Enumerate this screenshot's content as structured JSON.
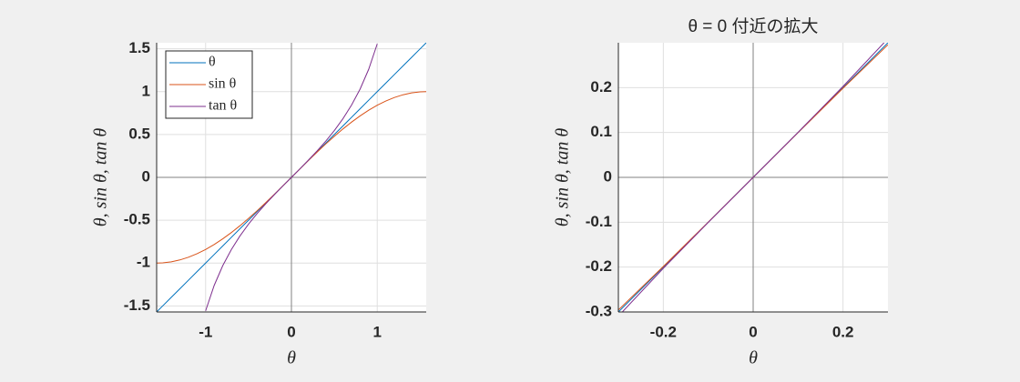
{
  "chart_data": [
    {
      "type": "line",
      "xlabel": "θ",
      "ylabel": "θ, sin θ, tan θ",
      "x": [
        -1.5708,
        -1.5,
        -1.4,
        -1.3,
        -1.2,
        -1.1,
        -1.0,
        -0.9,
        -0.8,
        -0.7,
        -0.6,
        -0.5,
        -0.4,
        -0.3,
        -0.2,
        -0.1,
        0,
        0.1,
        0.2,
        0.3,
        0.4,
        0.5,
        0.6,
        0.7,
        0.8,
        0.9,
        1.0,
        1.1,
        1.2,
        1.3,
        1.4,
        1.5,
        1.5708
      ],
      "series": [
        {
          "name": "θ",
          "color": "#0072bd",
          "values": [
            -1.5708,
            -1.5,
            -1.4,
            -1.3,
            -1.2,
            -1.1,
            -1.0,
            -0.9,
            -0.8,
            -0.7,
            -0.6,
            -0.5,
            -0.4,
            -0.3,
            -0.2,
            -0.1,
            0,
            0.1,
            0.2,
            0.3,
            0.4,
            0.5,
            0.6,
            0.7,
            0.8,
            0.9,
            1.0,
            1.1,
            1.2,
            1.3,
            1.4,
            1.5,
            1.5708
          ]
        },
        {
          "name": "sin θ",
          "color": "#d95319",
          "values": [
            -1,
            -0.9975,
            -0.9854,
            -0.9636,
            -0.932,
            -0.8912,
            -0.8415,
            -0.7833,
            -0.7174,
            -0.6442,
            -0.5646,
            -0.4794,
            -0.3894,
            -0.2955,
            -0.1987,
            -0.0998,
            0,
            0.0998,
            0.1987,
            0.2955,
            0.3894,
            0.4794,
            0.5646,
            0.6442,
            0.7174,
            0.7833,
            0.8415,
            0.8912,
            0.932,
            0.9636,
            0.9854,
            0.9975,
            1
          ]
        },
        {
          "name": "tan θ",
          "color": "#7e2f8e",
          "values": [
            null,
            null,
            null,
            null,
            null,
            null,
            -1.5574,
            -1.2602,
            -1.0296,
            -0.8423,
            -0.6841,
            -0.5463,
            -0.4228,
            -0.3093,
            -0.2027,
            -0.1003,
            0,
            0.1003,
            0.2027,
            0.3093,
            0.4228,
            0.5463,
            0.6841,
            0.8423,
            1.0296,
            1.2602,
            1.5574,
            null,
            null,
            null,
            null,
            null,
            null
          ]
        }
      ],
      "xlim": [
        -1.5708,
        1.5708
      ],
      "ylim": [
        -1.5708,
        1.5708
      ],
      "xticks": [
        -1,
        0,
        1
      ],
      "yticks": [
        -1.5,
        -1,
        -0.5,
        0,
        0.5,
        1,
        1.5
      ],
      "grid": true,
      "legend": "top-left"
    },
    {
      "type": "line",
      "title": "θ = 0 付近の拡大",
      "xlabel": "θ",
      "ylabel": "θ, sin θ, tan θ",
      "x": [
        -0.3,
        -0.2,
        -0.1,
        0,
        0.1,
        0.2,
        0.3
      ],
      "series": [
        {
          "color": "#0072bd",
          "values": [
            -0.3,
            -0.2,
            -0.1,
            0,
            0.1,
            0.2,
            0.3
          ]
        },
        {
          "color": "#d95319",
          "values": [
            -0.2955,
            -0.1987,
            -0.0998,
            0,
            0.0998,
            0.1987,
            0.2955
          ]
        },
        {
          "color": "#7e2f8e",
          "values": [
            -0.3093,
            -0.2027,
            -0.1003,
            0,
            0.1003,
            0.2027,
            0.3093
          ]
        }
      ],
      "xlim": [
        -0.3,
        0.3
      ],
      "ylim": [
        -0.3,
        0.3
      ],
      "xticks": [
        -0.2,
        0,
        0.2
      ],
      "yticks": [
        -0.3,
        -0.2,
        -0.1,
        0,
        0.1,
        0.2
      ],
      "grid": true
    }
  ]
}
